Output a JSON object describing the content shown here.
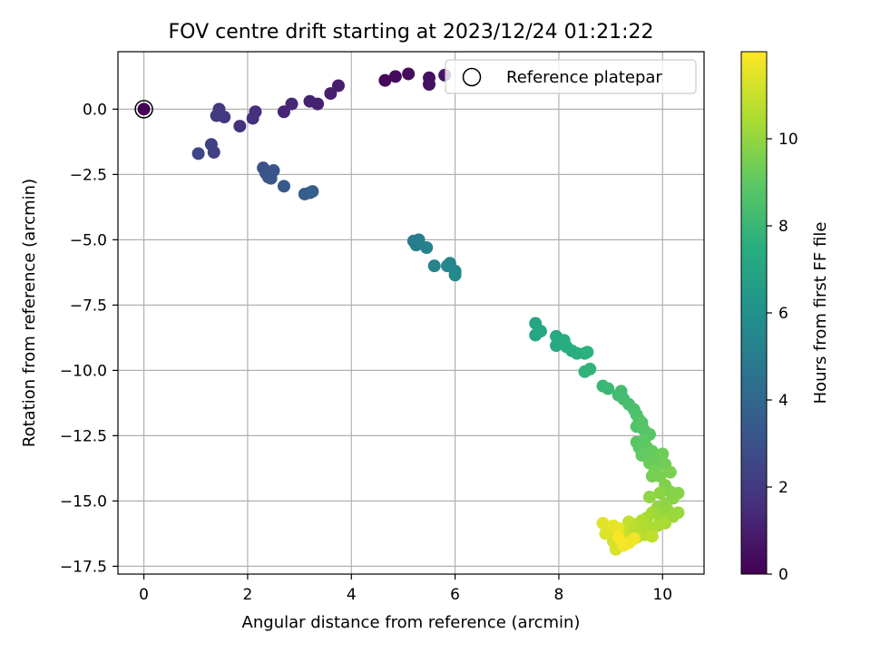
{
  "chart_data": {
    "type": "scatter",
    "title": "FOV centre drift starting at 2023/12/24 01:21:22",
    "xlabel": "Angular distance from reference (arcmin)",
    "ylabel": "Rotation from reference (arcmin)",
    "xlim": [
      -0.5,
      10.8
    ],
    "ylim": [
      -17.8,
      2.2
    ],
    "xticks": [
      0,
      2,
      4,
      6,
      8,
      10
    ],
    "xtick_labels": [
      "0",
      "2",
      "4",
      "6",
      "8",
      "10"
    ],
    "yticks": [
      0.0,
      -2.5,
      -5.0,
      -7.5,
      -10.0,
      -12.5,
      -15.0,
      -17.5
    ],
    "ytick_labels": [
      "0.0",
      "−2.5",
      "−5.0",
      "−7.5",
      "−10.0",
      "−12.5",
      "−15.0",
      "−17.5"
    ],
    "grid": true,
    "legend": {
      "placement": "top-right",
      "entries": [
        "Reference platepar"
      ]
    },
    "reference_point": {
      "x": 0,
      "y": 0,
      "hours": 0
    },
    "colorbar": {
      "label": "Hours from first FF file",
      "colormap": "viridis",
      "range": [
        0,
        12
      ],
      "ticks": [
        0,
        2,
        4,
        6,
        8,
        10
      ],
      "tick_labels": [
        "0",
        "2",
        "4",
        "6",
        "8",
        "10"
      ]
    },
    "series": [
      {
        "points": [
          {
            "x": 4.65,
            "y": 1.1,
            "h": 0.2
          },
          {
            "x": 4.85,
            "y": 1.25,
            "h": 0.3
          },
          {
            "x": 5.1,
            "y": 1.35,
            "h": 0.4
          },
          {
            "x": 5.5,
            "y": 1.2,
            "h": 0.5
          },
          {
            "x": 5.5,
            "y": 0.95,
            "h": 0.55
          },
          {
            "x": 5.8,
            "y": 1.3,
            "h": 0.65
          },
          {
            "x": 3.75,
            "y": 0.9,
            "h": 1.0
          },
          {
            "x": 3.6,
            "y": 0.6,
            "h": 1.05
          },
          {
            "x": 3.35,
            "y": 0.2,
            "h": 1.1
          },
          {
            "x": 3.2,
            "y": 0.3,
            "h": 1.15
          },
          {
            "x": 2.85,
            "y": 0.2,
            "h": 1.25
          },
          {
            "x": 2.7,
            "y": -0.1,
            "h": 1.3
          },
          {
            "x": 2.15,
            "y": -0.1,
            "h": 1.6
          },
          {
            "x": 2.1,
            "y": -0.35,
            "h": 1.65
          },
          {
            "x": 1.85,
            "y": -0.65,
            "h": 1.75
          },
          {
            "x": 1.55,
            "y": -0.3,
            "h": 1.95
          },
          {
            "x": 1.45,
            "y": 0.0,
            "h": 2.0
          },
          {
            "x": 1.4,
            "y": -0.25,
            "h": 2.05
          },
          {
            "x": 1.35,
            "y": -1.65,
            "h": 2.3
          },
          {
            "x": 1.3,
            "y": -1.35,
            "h": 2.35
          },
          {
            "x": 1.05,
            "y": -1.7,
            "h": 2.5
          },
          {
            "x": 2.3,
            "y": -2.25,
            "h": 3.0
          },
          {
            "x": 2.35,
            "y": -2.45,
            "h": 3.05
          },
          {
            "x": 2.4,
            "y": -2.6,
            "h": 3.1
          },
          {
            "x": 2.5,
            "y": -2.35,
            "h": 3.15
          },
          {
            "x": 2.45,
            "y": -2.65,
            "h": 3.2
          },
          {
            "x": 2.7,
            "y": -2.95,
            "h": 3.35
          },
          {
            "x": 3.1,
            "y": -3.25,
            "h": 3.5
          },
          {
            "x": 3.2,
            "y": -3.2,
            "h": 3.55
          },
          {
            "x": 3.25,
            "y": -3.15,
            "h": 3.6
          },
          {
            "x": 5.2,
            "y": -5.05,
            "h": 5.0
          },
          {
            "x": 5.25,
            "y": -5.2,
            "h": 5.05
          },
          {
            "x": 5.3,
            "y": -5.0,
            "h": 5.1
          },
          {
            "x": 5.45,
            "y": -5.3,
            "h": 5.2
          },
          {
            "x": 5.6,
            "y": -6.0,
            "h": 5.35
          },
          {
            "x": 5.85,
            "y": -6.0,
            "h": 5.45
          },
          {
            "x": 5.9,
            "y": -5.9,
            "h": 5.5
          },
          {
            "x": 6.0,
            "y": -6.2,
            "h": 5.55
          },
          {
            "x": 6.0,
            "y": -6.35,
            "h": 5.6
          },
          {
            "x": 7.55,
            "y": -8.2,
            "h": 7.0
          },
          {
            "x": 7.55,
            "y": -8.65,
            "h": 7.05
          },
          {
            "x": 7.65,
            "y": -8.5,
            "h": 7.1
          },
          {
            "x": 7.95,
            "y": -8.7,
            "h": 7.2
          },
          {
            "x": 7.95,
            "y": -9.05,
            "h": 7.25
          },
          {
            "x": 8.0,
            "y": -8.85,
            "h": 7.3
          },
          {
            "x": 8.1,
            "y": -8.85,
            "h": 7.35
          },
          {
            "x": 8.15,
            "y": -9.1,
            "h": 7.4
          },
          {
            "x": 8.25,
            "y": -9.25,
            "h": 7.45
          },
          {
            "x": 8.35,
            "y": -9.35,
            "h": 7.5
          },
          {
            "x": 8.5,
            "y": -9.35,
            "h": 7.55
          },
          {
            "x": 8.55,
            "y": -9.3,
            "h": 7.6
          },
          {
            "x": 8.5,
            "y": -10.05,
            "h": 7.75
          },
          {
            "x": 8.6,
            "y": -9.95,
            "h": 7.8
          },
          {
            "x": 8.85,
            "y": -10.6,
            "h": 8.0
          },
          {
            "x": 8.95,
            "y": -10.7,
            "h": 8.05
          },
          {
            "x": 9.15,
            "y": -10.95,
            "h": 8.2
          },
          {
            "x": 9.2,
            "y": -10.8,
            "h": 8.25
          },
          {
            "x": 9.25,
            "y": -11.1,
            "h": 8.3
          },
          {
            "x": 9.35,
            "y": -11.3,
            "h": 8.4
          },
          {
            "x": 9.45,
            "y": -11.5,
            "h": 8.5
          },
          {
            "x": 9.5,
            "y": -11.7,
            "h": 8.55
          },
          {
            "x": 9.55,
            "y": -11.9,
            "h": 8.6
          },
          {
            "x": 9.5,
            "y": -12.15,
            "h": 8.65
          },
          {
            "x": 9.6,
            "y": -12.0,
            "h": 8.7
          },
          {
            "x": 9.65,
            "y": -12.3,
            "h": 8.75
          },
          {
            "x": 9.75,
            "y": -12.45,
            "h": 8.8
          },
          {
            "x": 9.5,
            "y": -12.75,
            "h": 8.85
          },
          {
            "x": 9.55,
            "y": -12.95,
            "h": 8.9
          },
          {
            "x": 9.65,
            "y": -12.7,
            "h": 8.95
          },
          {
            "x": 9.7,
            "y": -12.95,
            "h": 9.0
          },
          {
            "x": 9.6,
            "y": -13.25,
            "h": 9.05
          },
          {
            "x": 9.8,
            "y": -13.1,
            "h": 9.1
          },
          {
            "x": 9.85,
            "y": -13.3,
            "h": 9.15
          },
          {
            "x": 9.75,
            "y": -13.55,
            "h": 9.2
          },
          {
            "x": 9.95,
            "y": -13.45,
            "h": 9.25
          },
          {
            "x": 10.0,
            "y": -13.2,
            "h": 9.3
          },
          {
            "x": 10.05,
            "y": -13.6,
            "h": 9.35
          },
          {
            "x": 9.85,
            "y": -13.85,
            "h": 9.4
          },
          {
            "x": 9.8,
            "y": -14.05,
            "h": 9.45
          },
          {
            "x": 9.95,
            "y": -14.05,
            "h": 9.5
          },
          {
            "x": 10.15,
            "y": -13.9,
            "h": 9.55
          },
          {
            "x": 10.05,
            "y": -14.4,
            "h": 9.6
          },
          {
            "x": 10.15,
            "y": -14.65,
            "h": 9.7
          },
          {
            "x": 10.3,
            "y": -14.7,
            "h": 9.75
          },
          {
            "x": 10.2,
            "y": -14.9,
            "h": 9.8
          },
          {
            "x": 9.95,
            "y": -14.7,
            "h": 9.85
          },
          {
            "x": 10.05,
            "y": -15.1,
            "h": 9.9
          },
          {
            "x": 9.75,
            "y": -14.85,
            "h": 9.95
          },
          {
            "x": 9.9,
            "y": -15.25,
            "h": 10.0
          },
          {
            "x": 10.1,
            "y": -15.35,
            "h": 10.05
          },
          {
            "x": 10.3,
            "y": -15.45,
            "h": 10.1
          },
          {
            "x": 10.2,
            "y": -15.6,
            "h": 10.15
          },
          {
            "x": 9.95,
            "y": -15.65,
            "h": 10.2
          },
          {
            "x": 9.8,
            "y": -15.45,
            "h": 10.3
          },
          {
            "x": 9.7,
            "y": -15.65,
            "h": 10.35
          },
          {
            "x": 10.05,
            "y": -15.85,
            "h": 10.4
          },
          {
            "x": 9.9,
            "y": -15.95,
            "h": 10.45
          },
          {
            "x": 9.75,
            "y": -16.05,
            "h": 10.5
          },
          {
            "x": 9.6,
            "y": -15.75,
            "h": 10.55
          },
          {
            "x": 9.55,
            "y": -16.0,
            "h": 10.6
          },
          {
            "x": 9.65,
            "y": -16.3,
            "h": 10.65
          },
          {
            "x": 9.45,
            "y": -15.9,
            "h": 10.7
          },
          {
            "x": 9.4,
            "y": -16.25,
            "h": 10.75
          },
          {
            "x": 9.5,
            "y": -16.4,
            "h": 10.8
          },
          {
            "x": 9.8,
            "y": -16.35,
            "h": 10.85
          },
          {
            "x": 9.35,
            "y": -15.8,
            "h": 10.9
          },
          {
            "x": 9.25,
            "y": -16.1,
            "h": 10.95
          },
          {
            "x": 9.3,
            "y": -16.5,
            "h": 11.0
          },
          {
            "x": 9.2,
            "y": -16.6,
            "h": 11.05
          },
          {
            "x": 9.1,
            "y": -16.3,
            "h": 11.1
          },
          {
            "x": 9.0,
            "y": -16.15,
            "h": 11.15
          },
          {
            "x": 9.05,
            "y": -16.55,
            "h": 11.2
          },
          {
            "x": 9.1,
            "y": -16.85,
            "h": 11.3
          },
          {
            "x": 8.9,
            "y": -16.25,
            "h": 11.4
          },
          {
            "x": 8.85,
            "y": -15.85,
            "h": 11.5
          },
          {
            "x": 9.05,
            "y": -15.95,
            "h": 11.55
          },
          {
            "x": 9.15,
            "y": -16.05,
            "h": 11.6
          },
          {
            "x": 9.35,
            "y": -16.6,
            "h": 11.7
          },
          {
            "x": 9.45,
            "y": -16.45,
            "h": 11.75
          },
          {
            "x": 9.25,
            "y": -16.7,
            "h": 11.8
          },
          {
            "x": 9.15,
            "y": -16.4,
            "h": 11.9
          }
        ]
      }
    ]
  }
}
